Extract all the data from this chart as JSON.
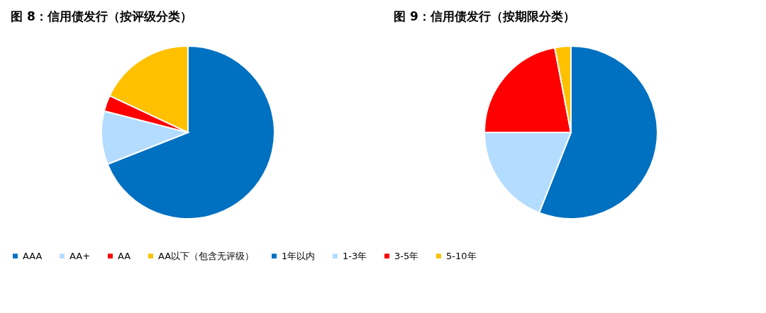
{
  "chart_data": [
    {
      "type": "pie",
      "title": "图 8：信用债发行（按评级分类）",
      "categories": [
        "AAA",
        "AA+",
        "AA",
        "AA以下（包含无评级）"
      ],
      "values": [
        69,
        10,
        3,
        18
      ],
      "colors": [
        "#0070c0",
        "#b4dcff",
        "#ff0000",
        "#ffc000"
      ],
      "legend": "bottom"
    },
    {
      "type": "pie",
      "title": "图 9：信用债发行（按期限分类）",
      "categories": [
        "1年以内",
        "1-3年",
        "3-5年",
        "5-10年"
      ],
      "values": [
        56,
        19,
        22,
        3
      ],
      "colors": [
        "#0070c0",
        "#b4dcff",
        "#ff0000",
        "#ffc000"
      ],
      "legend": "bottom"
    }
  ]
}
